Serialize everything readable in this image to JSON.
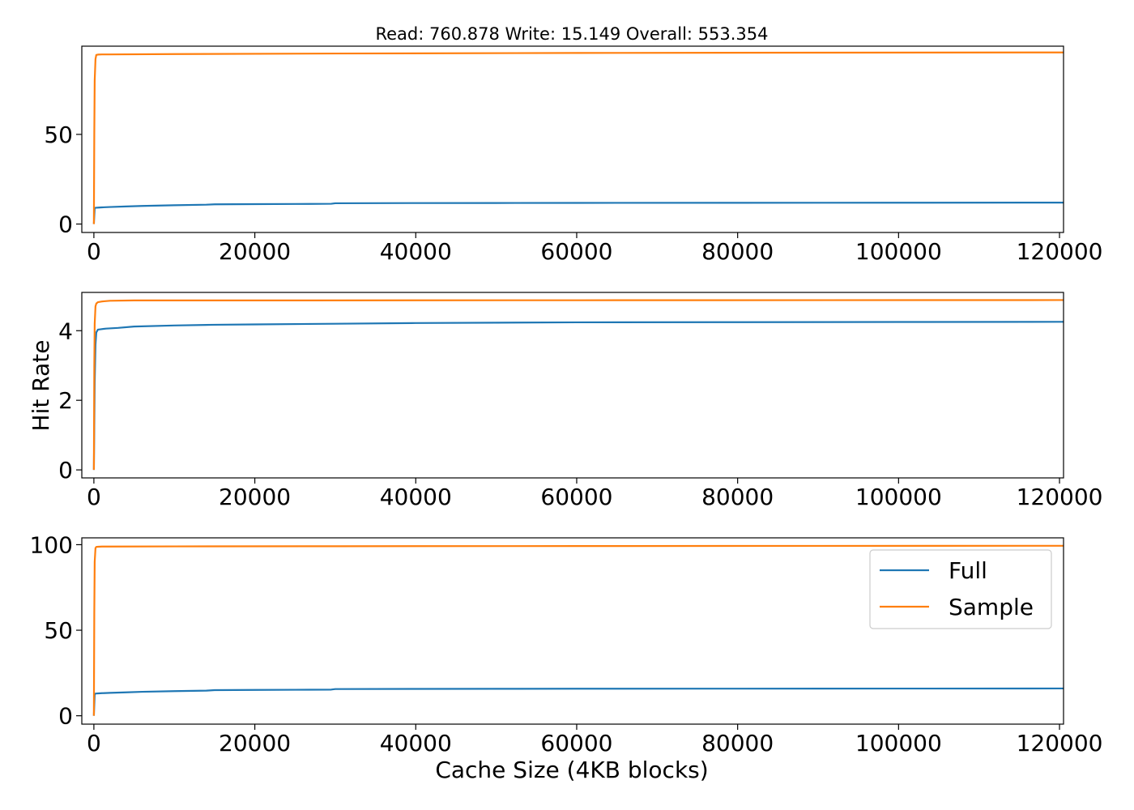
{
  "chart_data": {
    "type": "line",
    "title": "Read: 760.878 Write: 15.149 Overall: 553.354",
    "ylabel": "Hit Rate",
    "xlabel": "Cache Size (4KB blocks)",
    "xlim": [
      -1500,
      120500
    ],
    "x_ticks": [
      0,
      20000,
      40000,
      60000,
      80000,
      100000,
      120000
    ],
    "legend": {
      "placement": "upper-right",
      "entries": [
        "Full",
        "Sample"
      ]
    },
    "colors": {
      "Full": "#1f77b4",
      "Sample": "#ff7f0e"
    },
    "grid": false,
    "panels": [
      {
        "ylim": [
          -4.7,
          99.2
        ],
        "y_ticks": [
          0,
          50
        ],
        "series": [
          {
            "name": "Full",
            "x": [
              0,
              100,
              300,
              600,
              1000,
              2000,
              4000,
              6000,
              10000,
              14000,
              15000,
              20000,
              25000,
              29500,
              30000,
              40000,
              50000,
              60000,
              80000,
              100000,
              120000,
              120500
            ],
            "y": [
              0,
              9.0,
              9.1,
              9.2,
              9.3,
              9.5,
              9.8,
              10.1,
              10.5,
              10.8,
              11.0,
              11.1,
              11.2,
              11.3,
              11.6,
              11.7,
              11.75,
              11.8,
              11.85,
              11.9,
              11.95,
              11.95
            ]
          },
          {
            "name": "Sample",
            "x": [
              0,
              50,
              100,
              200,
              300,
              500,
              1000,
              2000,
              10000,
              30000,
              60000,
              90000,
              120000,
              120500
            ],
            "y": [
              0,
              50,
              80,
              92,
              94.3,
              94.5,
              94.6,
              94.6,
              94.8,
              95.1,
              95.4,
              95.6,
              95.7,
              95.7
            ]
          }
        ]
      },
      {
        "ylim": [
          -0.23,
          5.1
        ],
        "y_ticks": [
          0,
          2,
          4
        ],
        "series": [
          {
            "name": "Full",
            "x": [
              0,
              100,
              200,
              300,
              500,
              800,
              1500,
              3000,
              5000,
              10000,
              15000,
              20000,
              30000,
              40000,
              50000,
              60000,
              80000,
              100000,
              120000,
              120500
            ],
            "y": [
              0,
              2.5,
              3.6,
              3.95,
              4.03,
              4.04,
              4.06,
              4.08,
              4.12,
              4.15,
              4.17,
              4.18,
              4.2,
              4.22,
              4.23,
              4.24,
              4.245,
              4.25,
              4.255,
              4.255
            ]
          },
          {
            "name": "Sample",
            "x": [
              0,
              50,
              100,
              200,
              300,
              500,
              1000,
              2000,
              5000,
              20000,
              60000,
              120000,
              120500
            ],
            "y": [
              0,
              3.0,
              4.2,
              4.7,
              4.78,
              4.82,
              4.84,
              4.86,
              4.87,
              4.87,
              4.875,
              4.88,
              4.88
            ]
          }
        ]
      },
      {
        "ylim": [
          -4.9,
          104
        ],
        "y_ticks": [
          0,
          50,
          100
        ],
        "series": [
          {
            "name": "Full",
            "x": [
              0,
              100,
              300,
              600,
              1000,
              2000,
              4000,
              6000,
              10000,
              14000,
              15000,
              20000,
              25000,
              29500,
              30000,
              40000,
              50000,
              60000,
              80000,
              100000,
              120000,
              120500
            ],
            "y": [
              0,
              12.8,
              13.0,
              13.1,
              13.2,
              13.4,
              13.7,
              14.0,
              14.4,
              14.7,
              15.0,
              15.1,
              15.2,
              15.3,
              15.6,
              15.7,
              15.75,
              15.8,
              15.85,
              15.9,
              15.95,
              15.95
            ]
          },
          {
            "name": "Sample",
            "x": [
              0,
              50,
              100,
              200,
              300,
              500,
              1000,
              2000,
              10000,
              30000,
              60000,
              90000,
              120000,
              120500
            ],
            "y": [
              0,
              60,
              90,
              98,
              98.7,
              98.8,
              98.9,
              98.9,
              99.0,
              99.1,
              99.2,
              99.3,
              99.35,
              99.35
            ]
          }
        ]
      }
    ]
  }
}
